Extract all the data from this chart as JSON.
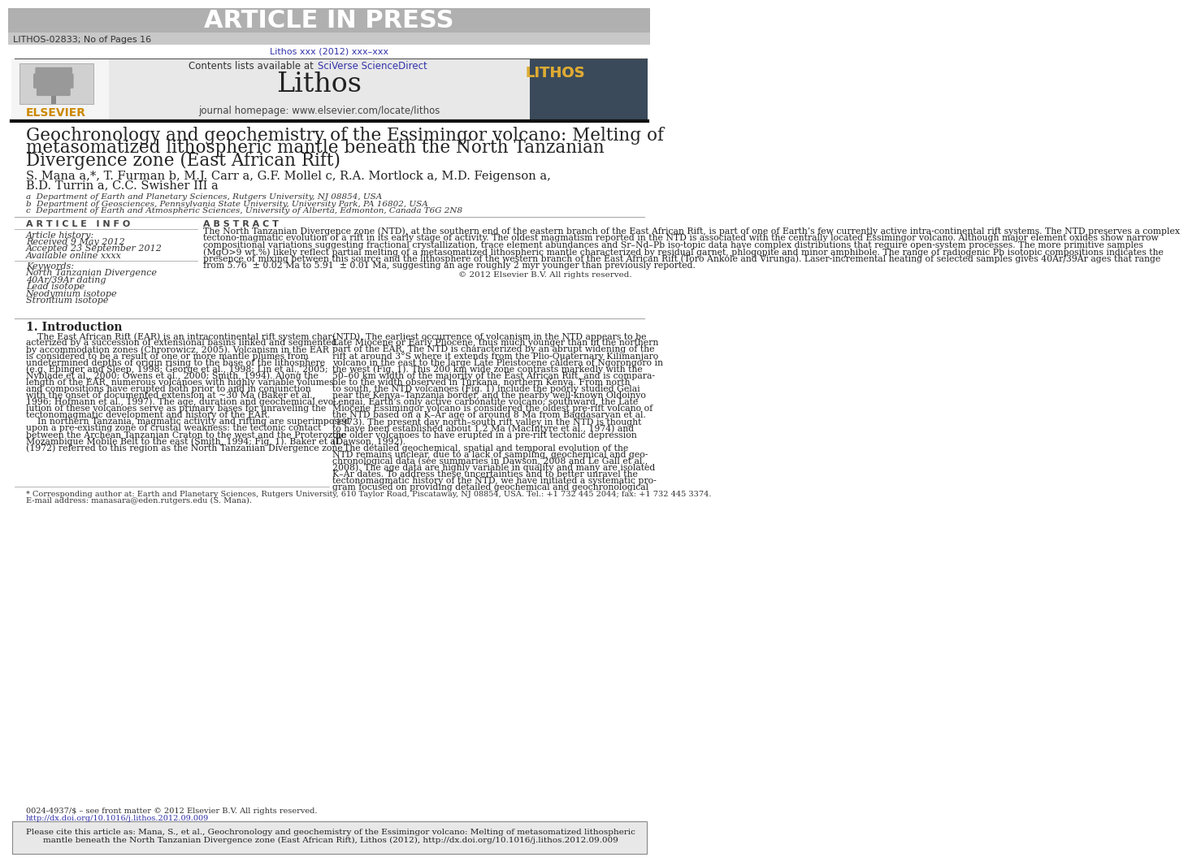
{
  "bg_color": "#ffffff",
  "header_bg": "#b0b0b0",
  "header_text": "ARTICLE IN PRESS",
  "header_subtext": "LITHOS-02833; No of Pages 16",
  "journal_ref": "Lithos xxx (2012) xxx–xxx",
  "journal_ref_color": "#3333aa",
  "contents_text": "Contents lists available at ",
  "sciverse_text": "SciVerse ScienceDirect",
  "sciverse_color": "#3333aa",
  "journal_name": "Lithos",
  "journal_homepage": "journal homepage: www.elsevier.com/locate/lithos",
  "elsevier_color": "#cc8800",
  "journal_box_bg": "#e8e8e8",
  "title_line1": "Geochronology and geochemistry of the Essimingor volcano: Melting of",
  "title_line2": "metasomatized lithospheric mantle beneath the North Tanzanian",
  "title_line3": "Divergence zone (East African Rift)",
  "authors": "S. Mana a,*, T. Furman b, M.J. Carr a, G.F. Mollel c, R.A. Mortlock a, M.D. Feigenson a,",
  "authors2": "B.D. Turrin a, C.C. Swisher III a",
  "affil_a": "a  Department of Earth and Planetary Sciences, Rutgers University, NJ 08854, USA",
  "affil_b": "b  Department of Geosciences, Pennsylvania State University, University Park, PA 16802, USA",
  "affil_c": "c  Department of Earth and Atmospheric Sciences, University of Alberta, Edmonton, Canada T6G 2N8",
  "article_info_header": "A R T I C L E   I N F O",
  "abstract_header": "A B S T R A C T",
  "article_history_label": "Article history:",
  "received": "Received 9 May 2012",
  "accepted": "Accepted 23 September 2012",
  "available": "Available online xxxx",
  "keywords_label": "Keywords:",
  "kw1": "North Tanzanian Divergence",
  "kw2": "40Ar/39Ar dating",
  "kw3": "Lead isotope",
  "kw4": "Neodymium isotope",
  "kw5": "Strontium isotope",
  "copyright": "© 2012 Elsevier B.V. All rights reserved.",
  "intro_header": "1. Introduction",
  "footnote1": "* Corresponding author at: Earth and Planetary Sciences, Rutgers University, 610 Taylor Road, Piscataway, NJ 08854, USA. Tel.: +1 732 445 2044; fax: +1 732 445 3374.",
  "footnote2": "E-mail address: manasara@eden.rutgers.edu (S. Mana).",
  "issn": "0024-4937/$ – see front matter © 2012 Elsevier B.V. All rights reserved.",
  "doi": "http://dx.doi.org/10.1016/j.lithos.2012.09.009",
  "doi_color": "#3333aa",
  "cite_box_bg": "#e8e8e8",
  "divider_color": "#555555",
  "light_divider_color": "#aaaaaa",
  "abstract_lines": [
    "The North Tanzanian Divergence zone (NTD), at the southern end of the eastern branch of the East African Rift, is part of one of Earth’s few currently active intra-continental rift systems. The NTD preserves a complex",
    "tectono-magmatic evolution of a rift in its early stage of activity. The oldest magmatism reported in the NTD is associated with the centrally located Essimingor volcano. Although major element oxides show narrow",
    "compositional variations suggesting fractional crystallization, trace element abundances and Sr–Nd–Pb iso-topic data have complex distributions that require open-system processes. The more primitive samples",
    "(MgO>9 wt.%) likely reflect partial melting of a metasomatized lithospheric mantle characterized by residual garnet, phlogopite and minor amphibole. The range of radiogenic Pb isotopic compositions indicates the",
    "presence of mixing between this source and the lithosphere of the western branch of the East African Rift (Toro Ankole and Virunga). Laser-incremental heating of selected samples gives 40Ar/39Ar ages that range",
    "from 5.76  ± 0.02 Ma to 5.91  ± 0.01 Ma, suggesting an age roughly 2 myr younger than previously reported."
  ],
  "left_intro_lines": [
    "    The East African Rift (EAR) is an intracontinental rift system char-",
    "acterized by a succession of extensional basins linked and segmented",
    "by accommodation zones (Chrorowicz, 2005). Volcanism in the EAR",
    "is considered to be a result of one or more mantle plumes from",
    "undetermined depths of origin rising to the base of the lithosphere",
    "(e.g. Ebinger and Sleep, 1998; George et al., 1998; Lin et al., 2005;",
    "Nyblade et al., 2000; Owens et al., 2000; Smith, 1994). Along the",
    "length of the EAR, numerous volcanoes with highly variable volumes",
    "and compositions have erupted both prior to and in conjunction",
    "with the onset of documented extension at ~30 Ma (Baker et al.,",
    "1996; Hofmann et al., 1997). The age, duration and geochemical evo-",
    "lution of these volcanoes serve as primary bases for unraveling the",
    "tectonomagmatic development and history of the EAR.",
    "    In northern Tanzania, magmatic activity and rifting are superimposed",
    "upon a pre-existing zone of crustal weakness: the tectonic contact",
    "between the Archean Tanzanian Craton to the west and the Proterozoic",
    "Mozambique Mobile Belt to the east (Smith, 1994; Fig. 1). Baker et al.",
    "(1972) referred to this region as the North Tanzanian Divergence zone"
  ],
  "right_intro_lines": [
    "(NTD). The earliest occurrence of volcanism in the NTD appears to be",
    "Late Miocene or Early Pliocene, thus much younger than in the northern",
    "part of the EAR. The NTD is characterized by an abrupt widening of the",
    "rift at around 3°S where it extends from the Plio-Quaternary Kilimanjaro",
    "volcano in the east to the large Late Pleistocene caldera of Ngorongoro in",
    "the west (Fig. 1). This 200 km wide zone contrasts markedly with the",
    "50–60 km width of the majority of the East African Rift, and is compara-",
    "ble to the width observed in Turkana, northern Kenya. From north",
    "to south, the NTD volcanoes (Fig. 1) include the poorly studied Gelai",
    "near the Kenya–Tanzania border, and the nearby well-known Oldoinyo",
    "Lengai, Earth’s only active carbonatite volcano; southward, the Late",
    "Miocene Essimingor volcano is considered the oldest pre-rift volcano of",
    "the NTD based on a K–Ar age of around 8 Ma from Bagdasaryan et al.",
    "(1973). The present day north–south rift valley in the NTD is thought",
    "to have been established about 1.2 Ma (MacIntyre et al., 1974) and",
    "the older volcanoes to have erupted in a pre-rift tectonic depression",
    "(Dawson, 1992).",
    "    The detailed geochemical, spatial and temporal evolution of the",
    "NTD remains unclear, due to a lack of sampling, geochemical and geo-",
    "chronological data (see summaries in Dawson, 2008 and Le Gall et al.,",
    "2008). The age data are highly variable in quality and many are isolated",
    "K–Ar dates. To address these uncertainties and to better unravel the",
    "tectonomagmatic history of the NTD, we have initiated a systematic pro-",
    "gram focused on providing detailed geochemical and geochronological"
  ],
  "cite_line1": "Please cite this article as: Mana, S., et al., Geochronology and geochemistry of the Essimingor volcano: Melting of metasomatized lithospheric",
  "cite_line2": "mantle beneath the North Tanzanian Divergence zone (East African Rift), Lithos (2012), http://dx.doi.org/10.1016/j.lithos.2012.09.009"
}
